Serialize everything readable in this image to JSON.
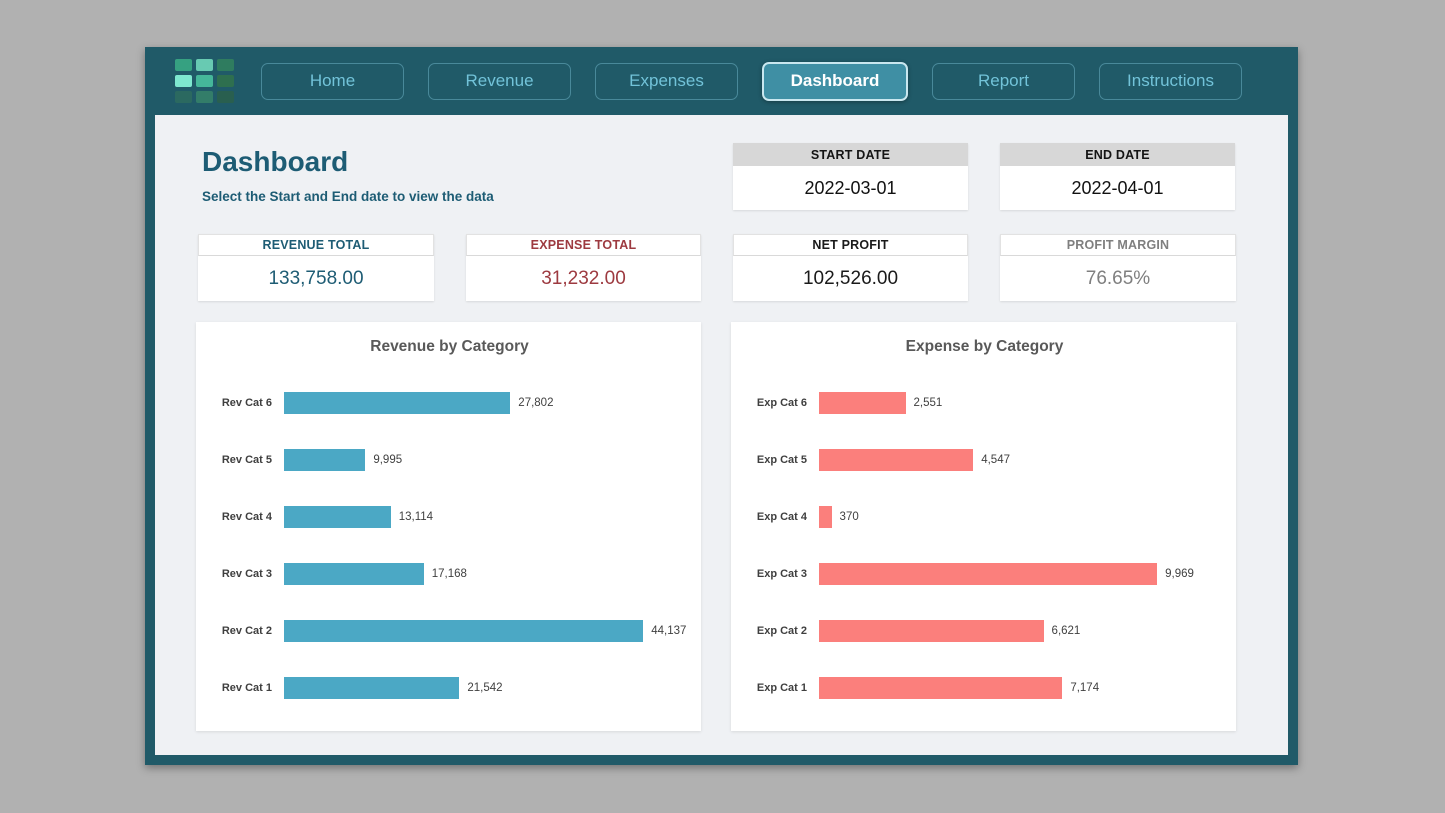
{
  "nav": {
    "logo_colors": [
      "#36a181",
      "#68cab2",
      "#2f7c5f",
      "#7ee8d0",
      "#45b79a",
      "#2e6f4f",
      "#2f6f5e",
      "#3a8a6a",
      "#2c6147"
    ],
    "items": [
      {
        "label": "Home",
        "active": false
      },
      {
        "label": "Revenue",
        "active": false
      },
      {
        "label": "Expenses",
        "active": false
      },
      {
        "label": "Dashboard",
        "active": true
      },
      {
        "label": "Report",
        "active": false
      },
      {
        "label": "Instructions",
        "active": false
      }
    ]
  },
  "header": {
    "title": "Dashboard",
    "subtitle": "Select the Start and End date to view the data"
  },
  "date_filters": [
    {
      "label": "START DATE",
      "value": "2022-03-01"
    },
    {
      "label": "END DATE",
      "value": "2022-04-01"
    }
  ],
  "kpis": [
    {
      "label": "REVENUE TOTAL",
      "value": "133,758.00",
      "color": "#1e5c74"
    },
    {
      "label": "EXPENSE TOTAL",
      "value": "31,232.00",
      "color": "#9d3a40"
    },
    {
      "label": "NET PROFIT",
      "value": "102,526.00",
      "color": "#1a1a1a"
    },
    {
      "label": "PROFIT MARGIN",
      "value": "76.65%",
      "color": "#7f7f7f"
    }
  ],
  "chart_data": [
    {
      "type": "bar",
      "orientation": "horizontal",
      "title": "Revenue by Category",
      "categories": [
        "Rev Cat 6",
        "Rev Cat 5",
        "Rev Cat 4",
        "Rev Cat 3",
        "Rev Cat 2",
        "Rev Cat 1"
      ],
      "values": [
        27802,
        9995,
        13114,
        17168,
        44137,
        21542
      ],
      "value_labels": [
        "27,802",
        "9,995",
        "13,114",
        "17,168",
        "44,137",
        "21,542"
      ],
      "bar_color": "#4BA8C5",
      "xlim": [
        0,
        50000
      ],
      "grid": false,
      "legend": false
    },
    {
      "type": "bar",
      "orientation": "horizontal",
      "title": "Expense by Category",
      "categories": [
        "Exp Cat 6",
        "Exp Cat 5",
        "Exp Cat 4",
        "Exp Cat 3",
        "Exp Cat 2",
        "Exp Cat 1"
      ],
      "values": [
        2551,
        4547,
        370,
        9969,
        6621,
        7174
      ],
      "value_labels": [
        "2,551",
        "4,547",
        "370",
        "9,969",
        "6,621",
        "7,174"
      ],
      "bar_color": "#FB7F7C",
      "xlim": [
        0,
        12000
      ],
      "grid": false,
      "legend": false
    }
  ],
  "colors": {
    "frame_teal": "#205a68",
    "content_bg": "#eff1f4",
    "nav_text": "#72c3d9",
    "active_button_fill": "#3f8fa4",
    "date_header_bg": "#d7d7d7",
    "chart_title": "#595959",
    "revenue_bar": "#4BA8C5",
    "expense_bar": "#FB7F7C"
  }
}
